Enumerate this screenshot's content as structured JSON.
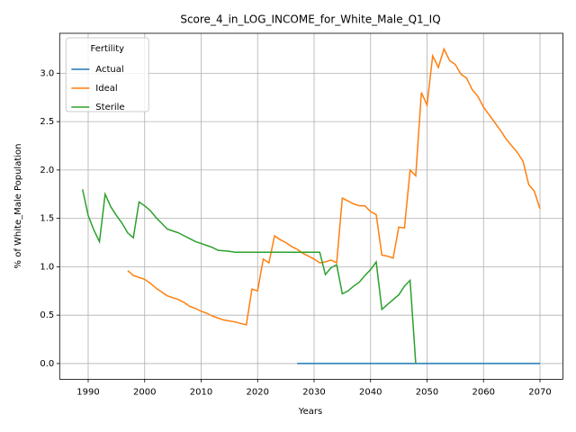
{
  "chart_data": {
    "type": "line",
    "title": "Score_4_in_LOG_INCOME_for_White_Male_Q1_IQ",
    "x_label": "Years",
    "y_label": "% of White_Male Population",
    "legend_title": "Fertility",
    "legend": "upper left",
    "grid": true,
    "x": [
      1989,
      1990,
      1991,
      1992,
      1993,
      1994,
      1995,
      1996,
      1997,
      1998,
      1999,
      2000,
      2001,
      2002,
      2003,
      2004,
      2005,
      2006,
      2007,
      2008,
      2009,
      2010,
      2011,
      2012,
      2013,
      2014,
      2015,
      2016,
      2017,
      2018,
      2019,
      2020,
      2021,
      2022,
      2023,
      2024,
      2025,
      2026,
      2027,
      2028,
      2029,
      2030,
      2031,
      2032,
      2033,
      2034,
      2035,
      2036,
      2037,
      2038,
      2039,
      2040,
      2041,
      2042,
      2043,
      2044,
      2045,
      2046,
      2047,
      2048,
      2049,
      2050,
      2051,
      2052,
      2053,
      2054,
      2055,
      2056,
      2057,
      2058,
      2059,
      2060,
      2061,
      2062,
      2063,
      2064,
      2065,
      2066,
      2067,
      2068,
      2069,
      2070
    ],
    "series": [
      {
        "name": "Actual",
        "color": "#1f77b4",
        "values": [
          null,
          null,
          null,
          null,
          null,
          null,
          null,
          null,
          null,
          null,
          null,
          null,
          null,
          null,
          null,
          null,
          null,
          null,
          null,
          null,
          null,
          null,
          null,
          null,
          null,
          null,
          null,
          null,
          null,
          null,
          null,
          null,
          null,
          null,
          null,
          null,
          null,
          null,
          0,
          0,
          0,
          0,
          0,
          0,
          0,
          0,
          0,
          0,
          0,
          0,
          0,
          0,
          0,
          0,
          0,
          0,
          0,
          0,
          0,
          0,
          0,
          0,
          0,
          0,
          0,
          0,
          0,
          0,
          0,
          0,
          0,
          0,
          0,
          0,
          0,
          0,
          0,
          0,
          0,
          0,
          0,
          0
        ]
      },
      {
        "name": "Ideal",
        "color": "#ff7f0e",
        "values": [
          null,
          null,
          null,
          null,
          null,
          null,
          null,
          null,
          0.96,
          0.91,
          0.89,
          0.87,
          0.83,
          0.78,
          0.74,
          0.7,
          0.68,
          0.66,
          0.63,
          0.59,
          0.57,
          0.54,
          0.52,
          0.49,
          0.47,
          0.45,
          0.44,
          0.43,
          0.415,
          0.4,
          0.77,
          0.75,
          1.08,
          1.04,
          1.32,
          1.28,
          1.25,
          1.21,
          1.18,
          1.14,
          1.11,
          1.08,
          1.04,
          1.05,
          1.07,
          1.04,
          1.71,
          1.68,
          1.65,
          1.63,
          1.63,
          1.57,
          1.54,
          1.12,
          1.11,
          1.09,
          1.41,
          1.4,
          2.0,
          1.94,
          2.8,
          2.67,
          3.18,
          3.06,
          3.25,
          3.13,
          3.09,
          2.99,
          2.95,
          2.83,
          2.76,
          2.65,
          2.57,
          2.49,
          2.41,
          2.32,
          2.25,
          2.18,
          2.09,
          1.85,
          1.78,
          1.6
        ]
      },
      {
        "name": "Sterile",
        "color": "#2ca02c",
        "values": [
          1.8,
          1.53,
          1.38,
          1.26,
          1.75,
          1.62,
          1.53,
          1.45,
          1.35,
          1.3,
          1.67,
          1.63,
          1.58,
          1.51,
          1.45,
          1.39,
          1.37,
          1.35,
          1.32,
          1.29,
          1.26,
          1.24,
          1.22,
          1.2,
          1.17,
          1.165,
          1.16,
          1.15,
          1.15,
          1.15,
          1.15,
          1.15,
          1.15,
          1.15,
          1.15,
          1.15,
          1.15,
          1.15,
          1.15,
          1.15,
          1.15,
          1.15,
          1.15,
          0.92,
          0.99,
          1.02,
          0.72,
          0.75,
          0.8,
          0.84,
          0.91,
          0.97,
          1.05,
          0.56,
          0.61,
          0.66,
          0.71,
          0.8,
          0.86,
          0,
          null,
          null,
          null,
          null,
          null,
          null,
          null,
          null,
          null,
          null,
          null,
          null,
          null,
          null,
          null,
          null,
          null,
          null,
          null,
          null,
          null,
          null
        ]
      }
    ],
    "xlim": [
      1984.95,
      2074.05
    ],
    "xticks": [
      1990,
      2000,
      2010,
      2020,
      2030,
      2040,
      2050,
      2060,
      2070
    ],
    "ylim": [
      -0.1625,
      3.4125
    ],
    "yticks": [
      {
        "value": 0,
        "label": "0.0"
      },
      0.5,
      {
        "value": 1,
        "label": "1.0"
      },
      1.5,
      {
        "value": 2,
        "label": "2.0"
      },
      2.5,
      {
        "value": 3,
        "label": "3.0"
      }
    ]
  }
}
